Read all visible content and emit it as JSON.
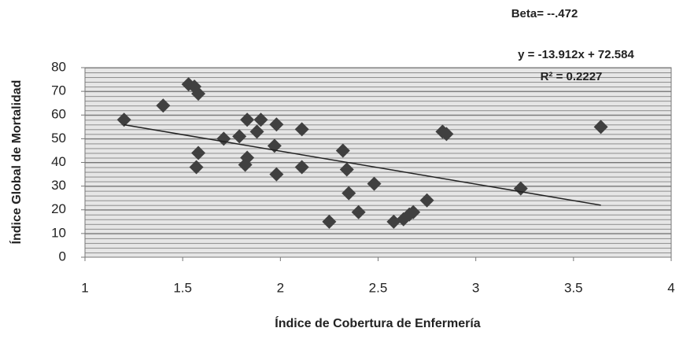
{
  "chart_data": {
    "type": "scatter",
    "x_label": "Índice de Cobertura de Enfermería",
    "y_label": "Índice Global de Mortalidad",
    "annotations": [
      "Beta= --.472",
      "y = -13.912x + 72.584",
      "R² = 0.2227"
    ],
    "trendline": {
      "slope": -13.912,
      "intercept": 72.584
    },
    "color": "#404040",
    "x": [
      1.2,
      1.4,
      1.53,
      1.56,
      1.58,
      1.58,
      1.57,
      1.71,
      1.79,
      1.83,
      1.83,
      1.82,
      1.88,
      1.9,
      1.97,
      1.98,
      1.98,
      2.11,
      2.11,
      2.32,
      2.34,
      2.35,
      2.4,
      2.48,
      2.25,
      2.58,
      2.63,
      2.66,
      2.68,
      2.75,
      2.83,
      2.85,
      3.23,
      3.64
    ],
    "values": [
      58,
      64,
      73,
      72,
      69,
      44,
      38,
      50,
      51,
      58,
      42,
      39,
      53,
      58,
      47,
      56,
      35,
      54,
      38,
      45,
      37,
      27,
      19,
      31,
      15,
      15,
      16,
      18,
      19,
      24,
      53,
      52,
      29,
      55
    ],
    "xlim": [
      1,
      4
    ],
    "xticks": [
      1,
      1.5,
      2,
      2.5,
      3,
      3.5,
      4
    ],
    "ylim": [
      0,
      80
    ],
    "yticks": [
      0,
      10,
      20,
      30,
      40,
      50,
      60,
      70,
      80
    ],
    "grid": true
  }
}
